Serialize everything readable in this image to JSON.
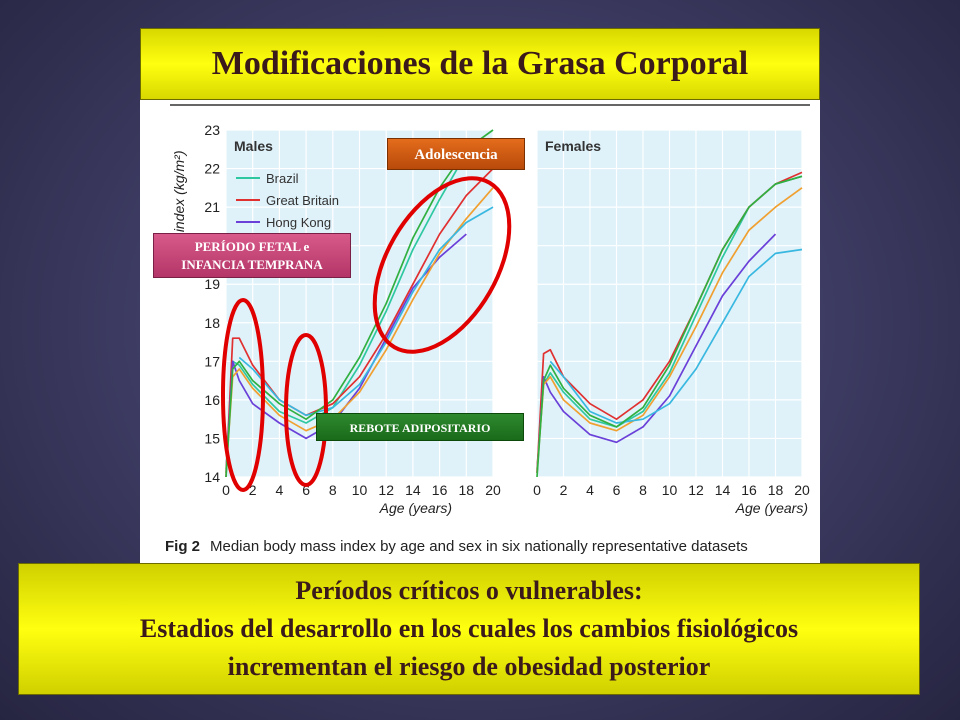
{
  "slide": {
    "title": "Modificaciones de la Grasa Corporal",
    "bottom_lines": [
      "Períodos críticos o vulnerables:",
      "Estadios del desarrollo en los cuales los cambios fisiológicos",
      "incrementan el riesgo de obesidad posterior"
    ]
  },
  "callouts": {
    "adolescencia": "Adolescencia",
    "fetal_line1": "PERÍODO FETAL e",
    "fetal_line2": "INFANCIA TEMPRANA",
    "rebote": "REBOTE ADIPOSITARIO"
  },
  "colors": {
    "title_bg": "#ffff10",
    "panel_bg": "#dff1f9",
    "highlight_ellipse": "#e00000",
    "adolescencia": "#d35a12",
    "fetal": "#c8467a",
    "rebote": "#228022"
  },
  "chart_data": {
    "type": "line",
    "caption_label": "Fig 2",
    "caption_text": "Median body mass index by age and sex in six nationally representative datasets",
    "ylabel": "mass index (kg/m²)",
    "xlabel": "Age (years)",
    "xlim": [
      0,
      20
    ],
    "ylim": [
      14,
      23
    ],
    "x_ticks": [
      0,
      2,
      4,
      6,
      8,
      10,
      12,
      14,
      16,
      18,
      20
    ],
    "y_ticks": [
      14,
      15,
      16,
      17,
      18,
      19,
      20,
      21,
      22,
      23
    ],
    "grid": true,
    "legend_entries_visible": [
      "Brazil",
      "Great Britain",
      "Hong Kong"
    ],
    "panels": [
      {
        "label": "Males",
        "series": [
          {
            "name": "Brazil",
            "color": "#2ec8a0",
            "x": [
              0,
              0.5,
              1,
              2,
              4,
              6,
              8,
              10,
              12,
              14,
              16,
              18
            ],
            "y": [
              14.2,
              17.0,
              16.9,
              16.4,
              15.7,
              15.4,
              15.8,
              16.9,
              18.3,
              19.9,
              21.2,
              22.4
            ]
          },
          {
            "name": "Great Britain",
            "color": "#e03030",
            "x": [
              0,
              0.5,
              1,
              2,
              4,
              6,
              8,
              10,
              12,
              14,
              16,
              18,
              20
            ],
            "y": [
              14.0,
              17.6,
              17.6,
              16.9,
              16.0,
              15.6,
              15.9,
              16.6,
              17.7,
              19.0,
              20.3,
              21.3,
              22.0
            ]
          },
          {
            "name": "Hong Kong",
            "color": "#6a40d8",
            "x": [
              0,
              0.5,
              1,
              2,
              4,
              6,
              8,
              10,
              12,
              14,
              16,
              18
            ],
            "y": [
              14.1,
              17.0,
              16.5,
              15.9,
              15.4,
              15.0,
              15.4,
              16.3,
              17.6,
              18.9,
              19.7,
              20.3
            ]
          },
          {
            "color": "#f0a030",
            "x": [
              0,
              0.5,
              1,
              2,
              4,
              6,
              8,
              10,
              12,
              14,
              16,
              18,
              20
            ],
            "y": [
              14.1,
              16.6,
              16.8,
              16.3,
              15.6,
              15.2,
              15.5,
              16.2,
              17.3,
              18.6,
              19.8,
              20.7,
              21.5
            ]
          },
          {
            "color": "#38b8e0",
            "x": [
              1,
              2,
              4,
              6,
              8,
              10,
              12,
              14,
              16,
              18,
              20
            ],
            "y": [
              17.1,
              16.8,
              16.0,
              15.6,
              15.8,
              16.4,
              17.5,
              18.8,
              19.9,
              20.6,
              21.0
            ]
          },
          {
            "color": "#30b040",
            "x": [
              0,
              0.5,
              1,
              2,
              4,
              6,
              8,
              10,
              12,
              14,
              16,
              18,
              20
            ],
            "y": [
              14.0,
              16.8,
              17.0,
              16.5,
              15.9,
              15.5,
              16.0,
              17.1,
              18.5,
              20.2,
              21.5,
              22.5,
              23.0
            ]
          }
        ]
      },
      {
        "label": "Females",
        "series": [
          {
            "name": "Brazil",
            "color": "#2ec8a0",
            "x": [
              0,
              0.5,
              1,
              2,
              4,
              6,
              8,
              10,
              12,
              14,
              16,
              18,
              20
            ],
            "y": [
              14.2,
              16.4,
              16.7,
              16.2,
              15.5,
              15.3,
              15.7,
              16.7,
              18.2,
              19.7,
              21.0,
              21.6,
              21.8
            ]
          },
          {
            "name": "Great Britain",
            "color": "#e03030",
            "x": [
              0,
              0.5,
              1,
              2,
              4,
              6,
              8,
              10,
              12,
              14,
              16,
              18,
              20
            ],
            "y": [
              14.1,
              17.2,
              17.3,
              16.6,
              15.9,
              15.5,
              16.0,
              17.0,
              18.4,
              19.9,
              21.0,
              21.6,
              21.9
            ]
          },
          {
            "name": "Hong Kong",
            "color": "#6a40d8",
            "x": [
              0,
              0.5,
              1,
              2,
              4,
              6,
              8,
              10,
              12,
              14,
              16,
              18
            ],
            "y": [
              14.1,
              16.6,
              16.2,
              15.7,
              15.1,
              14.9,
              15.3,
              16.1,
              17.4,
              18.7,
              19.6,
              20.3
            ]
          },
          {
            "color": "#f0a030",
            "x": [
              0,
              0.5,
              1,
              2,
              4,
              6,
              8,
              10,
              12,
              14,
              16,
              18,
              20
            ],
            "y": [
              14.1,
              16.4,
              16.6,
              16.0,
              15.4,
              15.2,
              15.6,
              16.6,
              17.9,
              19.3,
              20.4,
              21.0,
              21.5
            ]
          },
          {
            "color": "#38b8e0",
            "x": [
              1,
              2,
              4,
              6,
              8,
              10,
              12,
              14,
              16,
              18,
              20
            ],
            "y": [
              17.0,
              16.6,
              15.7,
              15.4,
              15.5,
              15.9,
              16.8,
              18.0,
              19.2,
              19.8,
              19.9
            ]
          },
          {
            "color": "#30b040",
            "x": [
              0,
              0.5,
              1,
              2,
              4,
              6,
              8,
              10,
              12,
              14,
              16,
              18,
              20
            ],
            "y": [
              14.0,
              16.5,
              16.9,
              16.3,
              15.6,
              15.3,
              15.8,
              16.9,
              18.4,
              19.9,
              21.0,
              21.6,
              21.8
            ]
          }
        ]
      }
    ]
  }
}
